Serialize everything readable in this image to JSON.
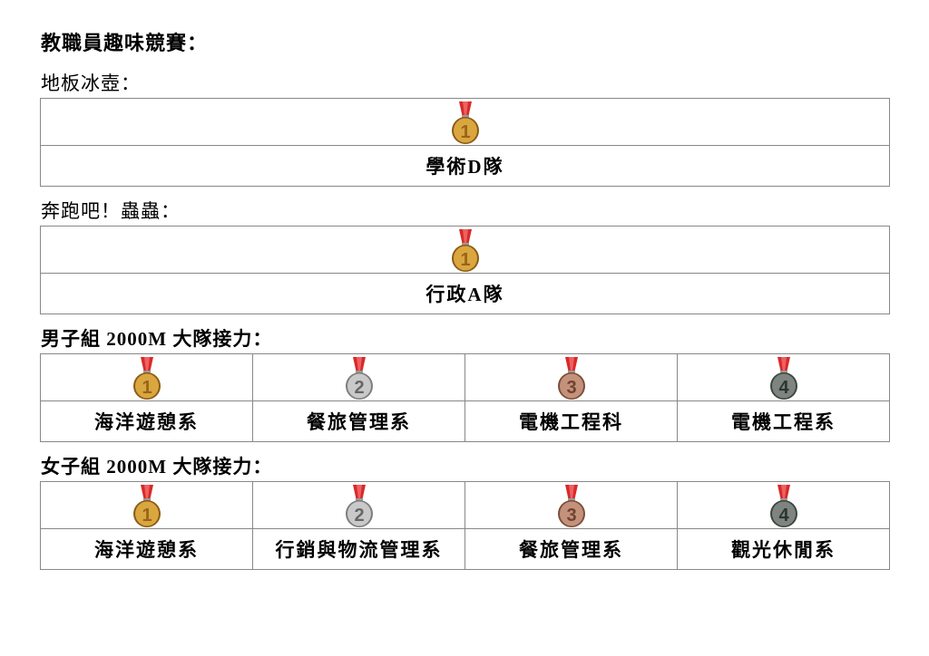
{
  "title": "教職員趣味競賽：",
  "medal_colors": {
    "1": {
      "face": "#d9a640",
      "dark": "#8a5a14",
      "num": "#9a6418"
    },
    "2": {
      "face": "#c9c9c9",
      "dark": "#7d7d7d",
      "num": "#666666"
    },
    "3": {
      "face": "#c4917a",
      "dark": "#7a4e3a",
      "num": "#6e4330"
    },
    "4": {
      "face": "#7e8580",
      "dark": "#3e4440",
      "num": "#2e3430"
    },
    "ribbon": "#d62a2a"
  },
  "sections": [
    {
      "heading": "地板冰壺：",
      "bold": false,
      "results": [
        {
          "rank": 1,
          "team": "學術D隊"
        }
      ]
    },
    {
      "heading": "奔跑吧！蟲蟲：",
      "bold": false,
      "results": [
        {
          "rank": 1,
          "team": "行政A隊"
        }
      ]
    },
    {
      "heading": "男子組 2000M 大隊接力：",
      "bold": true,
      "results": [
        {
          "rank": 1,
          "team": "海洋遊憩系"
        },
        {
          "rank": 2,
          "team": "餐旅管理系"
        },
        {
          "rank": 3,
          "team": "電機工程科"
        },
        {
          "rank": 4,
          "team": "電機工程系"
        }
      ]
    },
    {
      "heading": "女子組 2000M 大隊接力：",
      "bold": true,
      "results": [
        {
          "rank": 1,
          "team": "海洋遊憩系"
        },
        {
          "rank": 2,
          "team": "行銷與物流管理系"
        },
        {
          "rank": 3,
          "team": "餐旅管理系"
        },
        {
          "rank": 4,
          "team": "觀光休閒系"
        }
      ]
    }
  ]
}
